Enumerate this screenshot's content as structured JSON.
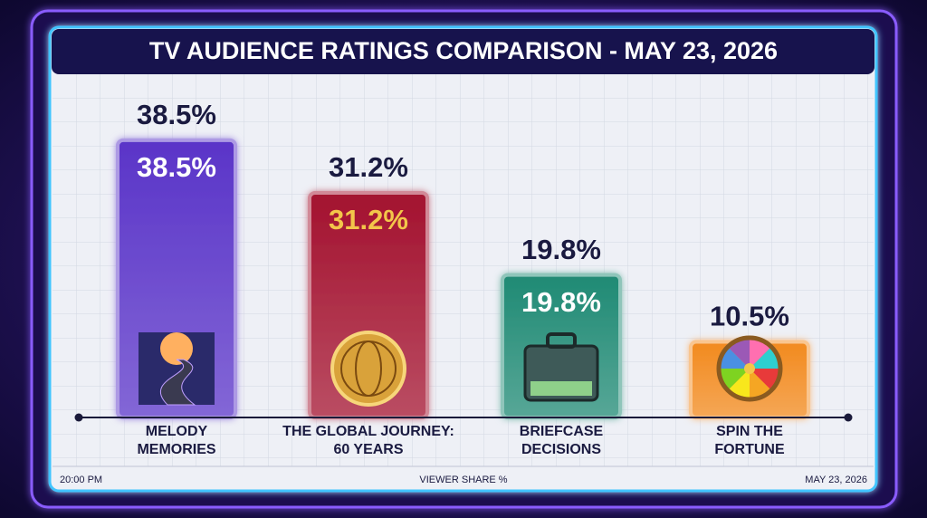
{
  "chart_data": {
    "type": "bar",
    "title": "TV AUDIENCE RATINGS COMPARISON - MAY 23, 2026",
    "categories": [
      "MELODY MEMORIES",
      "THE GLOBAL JOURNEY: 60 YEARS",
      "BRIEFCASE DECISIONS",
      "SPIN THE FORTUNE"
    ],
    "values": [
      38.5,
      31.2,
      19.8,
      10.5
    ],
    "value_labels": [
      "38.5%",
      "31.2%",
      "19.8%",
      "10.5%"
    ],
    "colors": [
      "#5a34c8",
      "#a3122f",
      "#1f8a74",
      "#f28a1e"
    ],
    "ylim": [
      0,
      40
    ],
    "x_label": "VIEWER SHARE %",
    "time": "20:00 PM",
    "date": "MAY 23, 2026"
  }
}
